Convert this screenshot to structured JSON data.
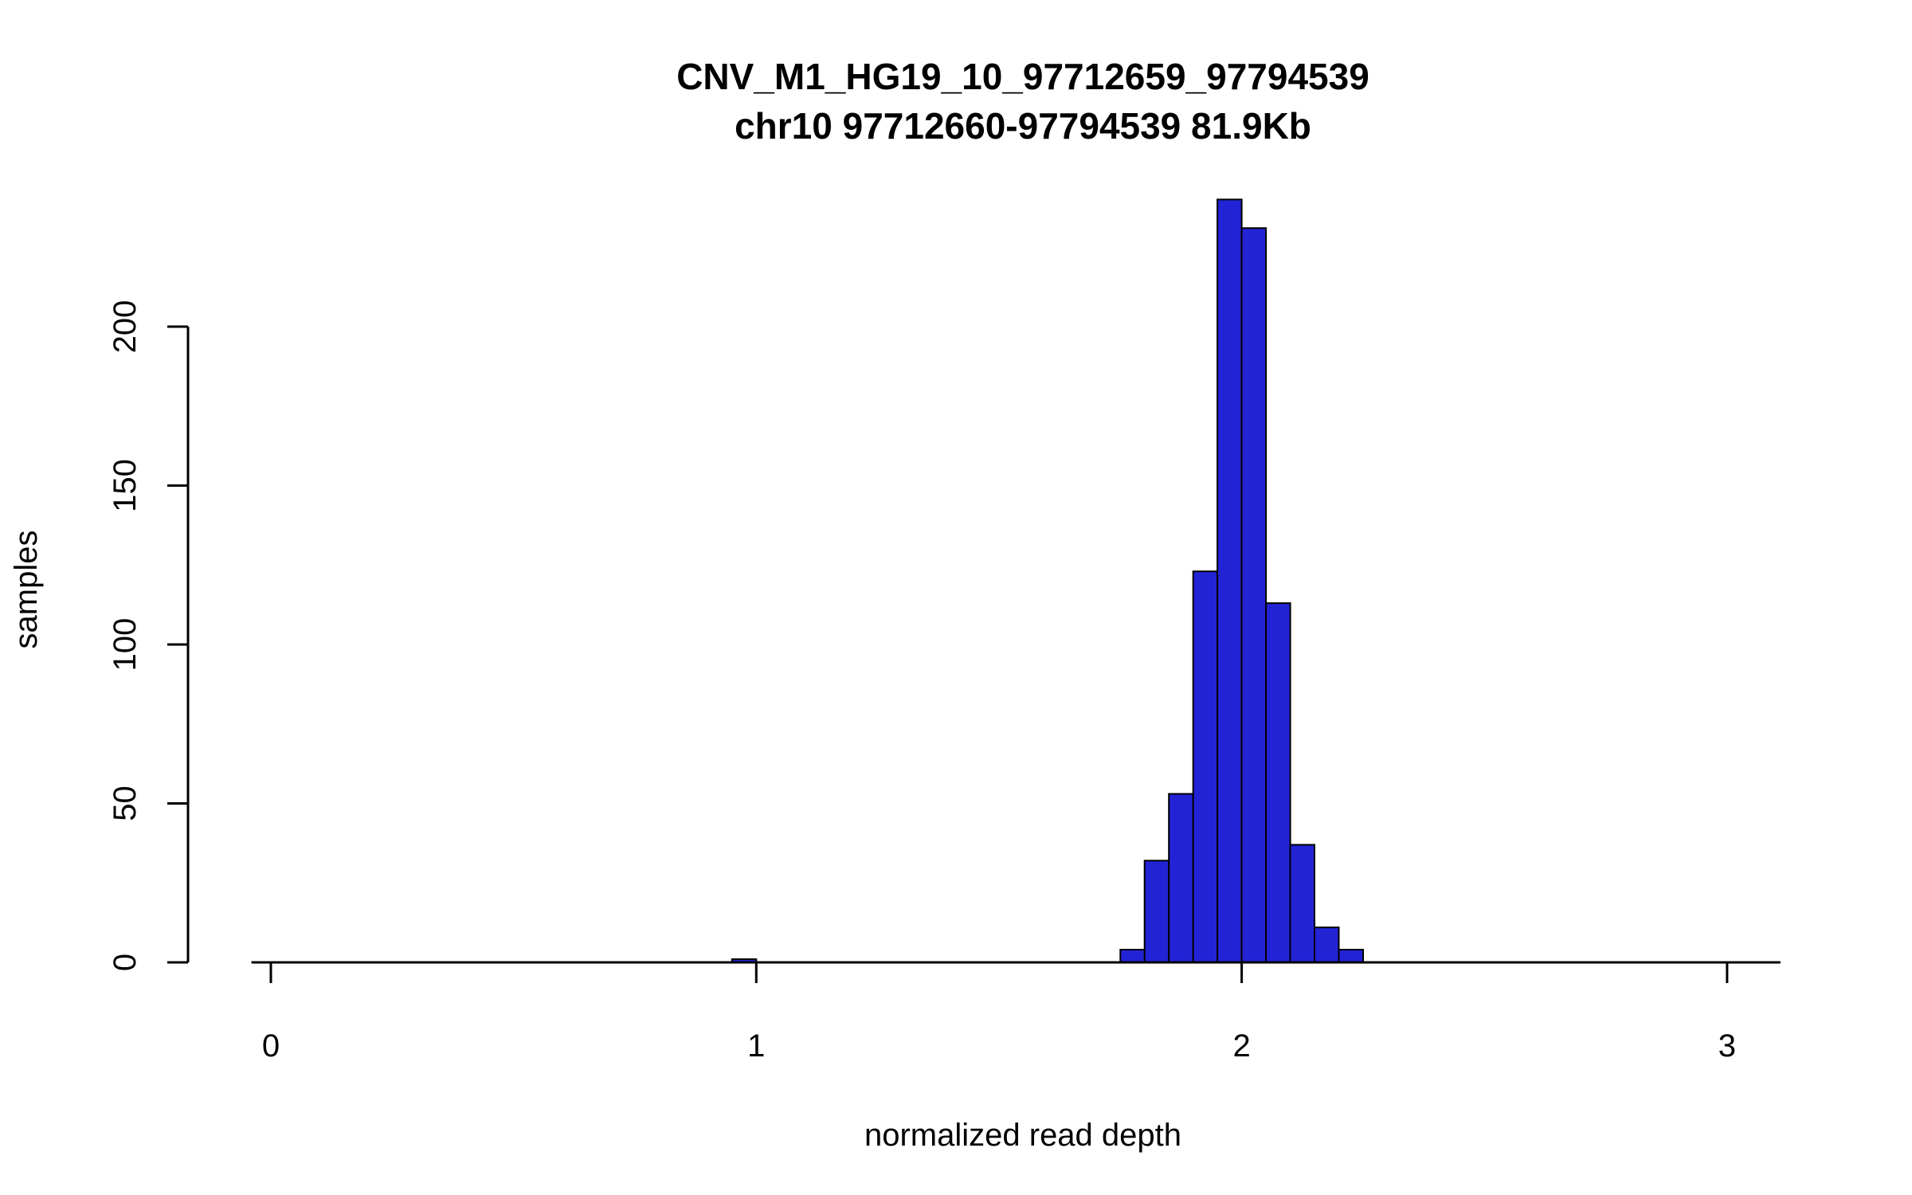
{
  "chart_data": {
    "type": "bar",
    "title": "CNV_M1_HG19_10_97712659_97794539",
    "subtitle": "chr10 97712660-97794539 81.9Kb",
    "xlabel": "normalized read depth",
    "ylabel": "samples",
    "x_ticks": [
      0,
      1,
      2,
      3
    ],
    "y_ticks": [
      0,
      50,
      100,
      150,
      200
    ],
    "xlim": [
      -0.04,
      3.11
    ],
    "ylim": [
      0,
      240
    ],
    "bin_width": 0.05,
    "bars": [
      {
        "x": 0.95,
        "count": 1
      },
      {
        "x": 1.75,
        "count": 4
      },
      {
        "x": 1.8,
        "count": 32
      },
      {
        "x": 1.85,
        "count": 53
      },
      {
        "x": 1.9,
        "count": 123
      },
      {
        "x": 1.95,
        "count": 240
      },
      {
        "x": 2.0,
        "count": 231
      },
      {
        "x": 2.05,
        "count": 113
      },
      {
        "x": 2.1,
        "count": 37
      },
      {
        "x": 2.15,
        "count": 11
      },
      {
        "x": 2.2,
        "count": 4
      }
    ],
    "colors": {
      "bar_fill": "#2323d6",
      "bar_border": "#000000",
      "axis": "#000000",
      "text": "#000000",
      "background": "#ffffff"
    }
  }
}
